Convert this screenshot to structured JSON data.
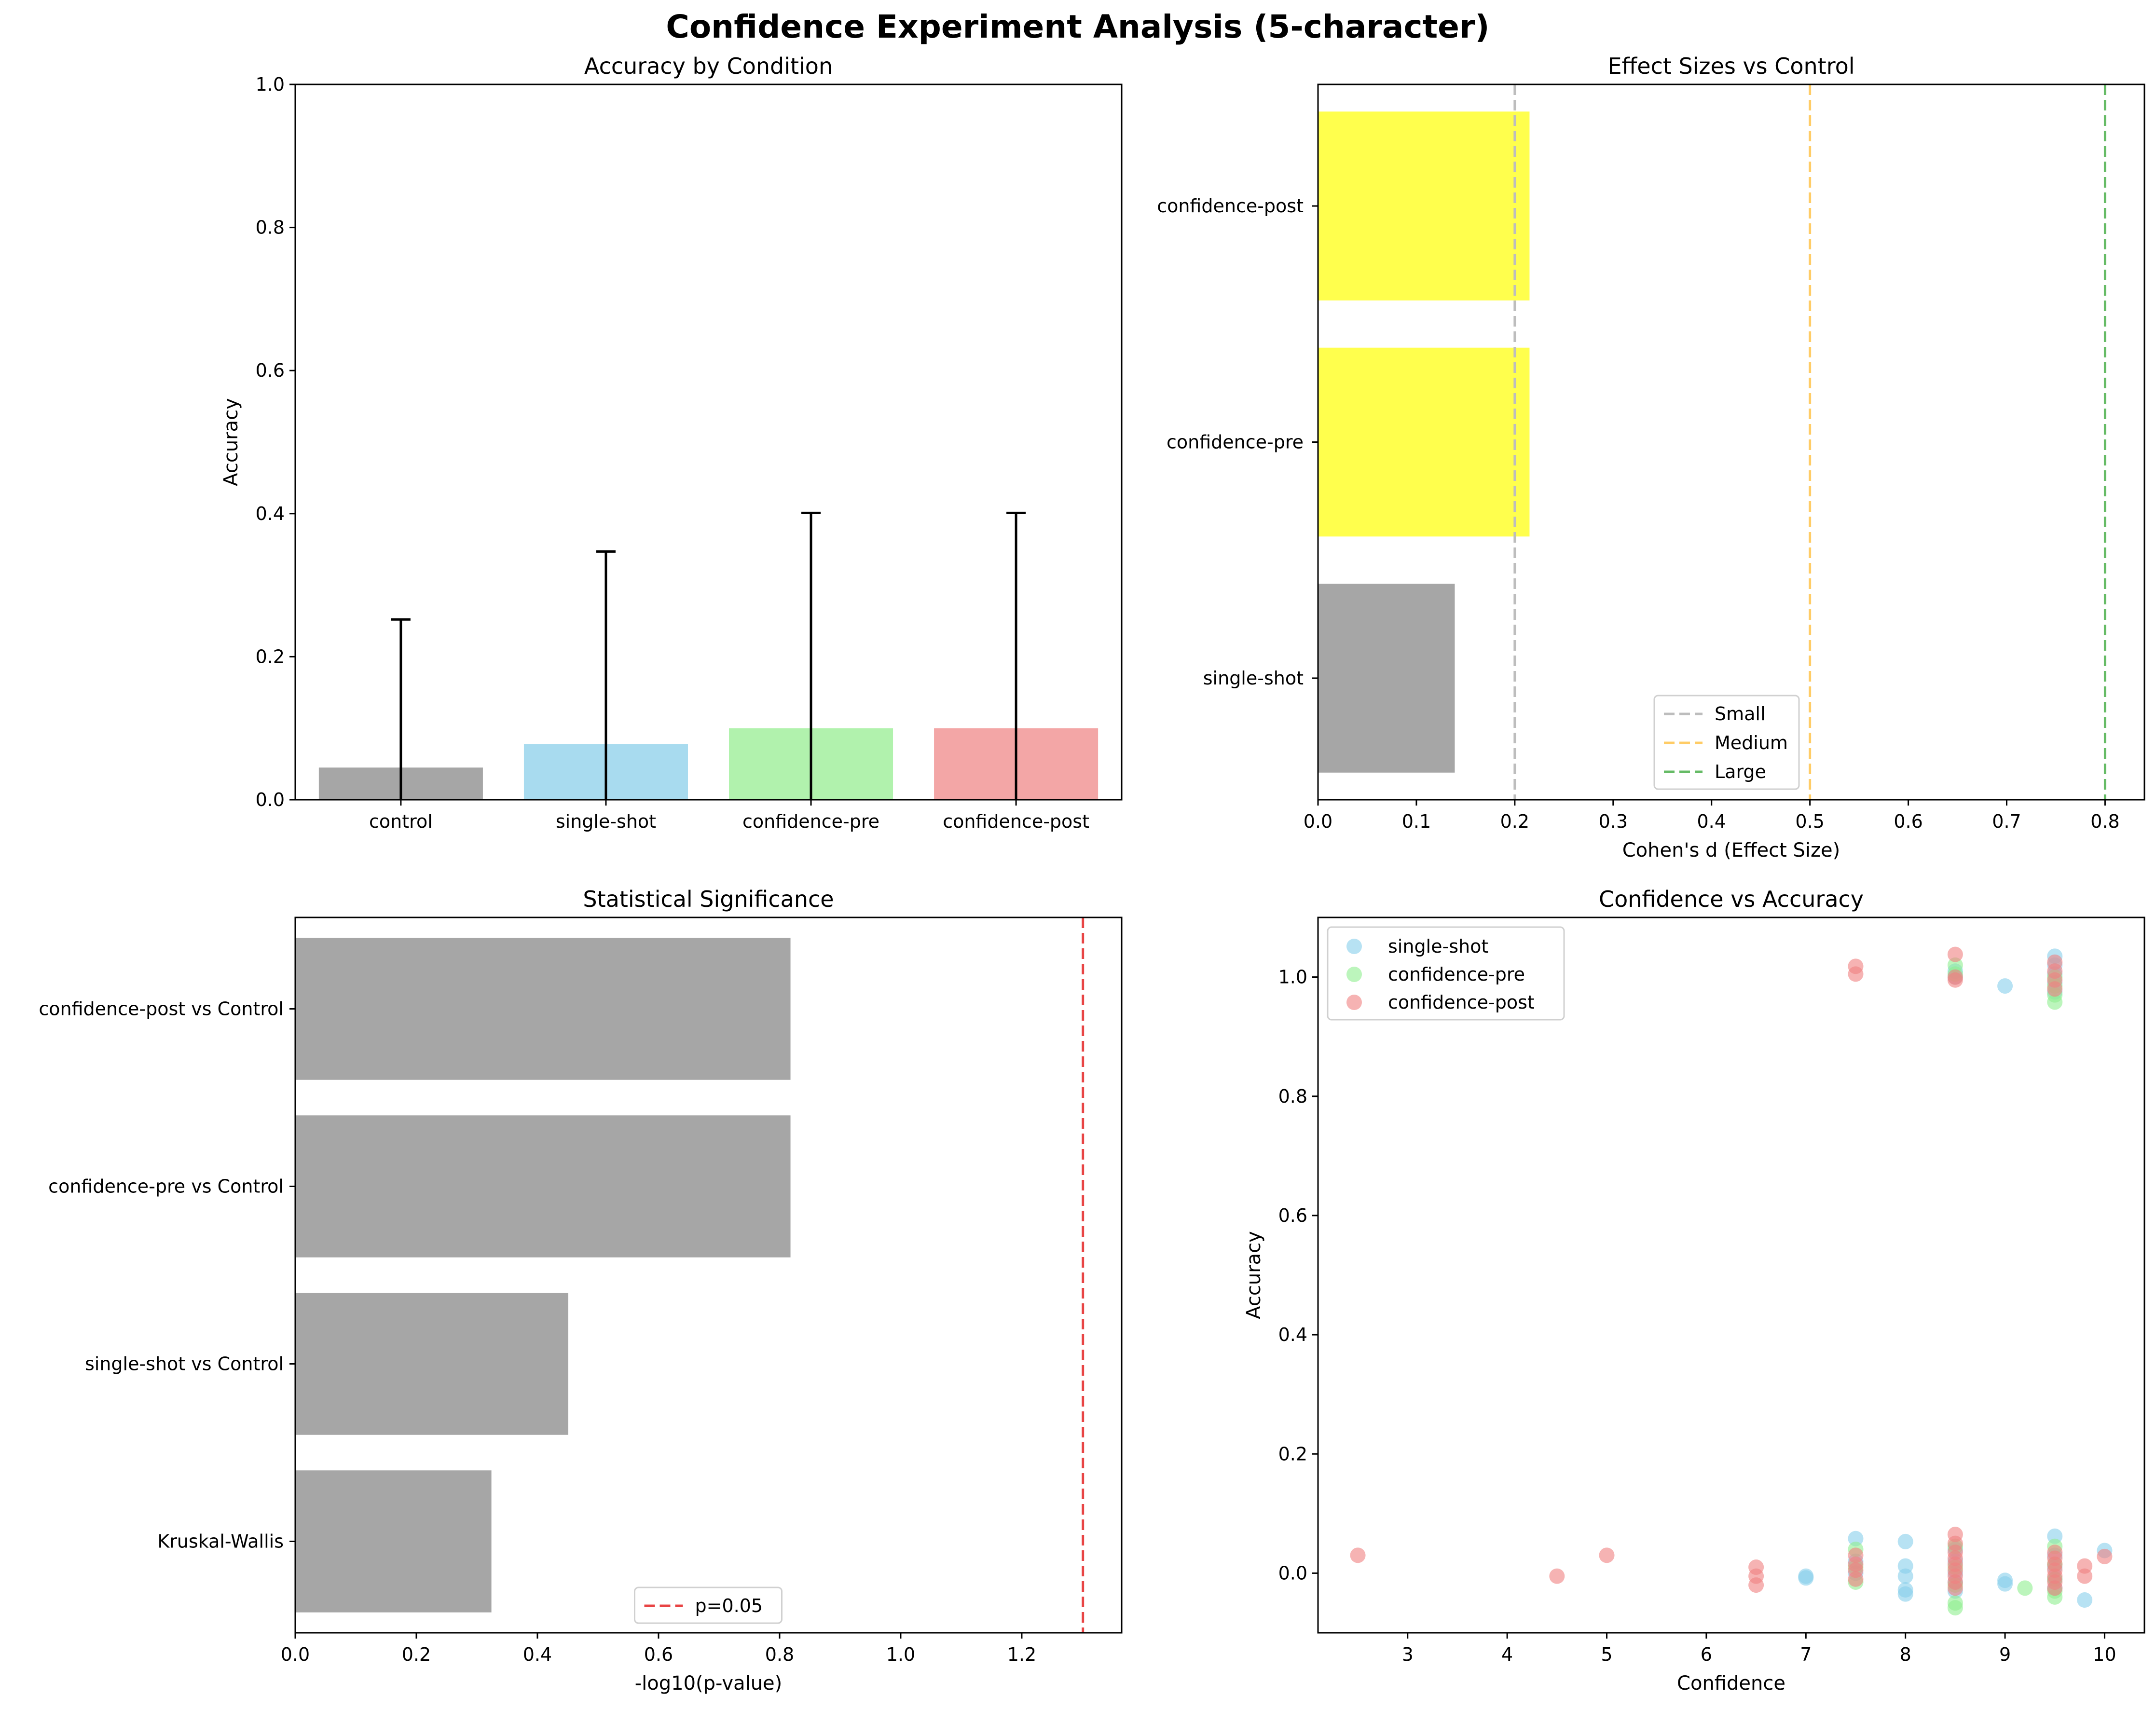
{
  "figure": {
    "title": "Confidence Experiment Analysis (5-character)"
  },
  "chart_data": [
    {
      "type": "bar",
      "title": "Accuracy by Condition",
      "xlabel": "",
      "ylabel": "Accuracy",
      "ylim": [
        0,
        1.0
      ],
      "yticks": [
        0.0,
        0.2,
        0.4,
        0.6,
        0.8,
        1.0
      ],
      "categories": [
        "control",
        "single-shot",
        "confidence-pre",
        "confidence-post"
      ],
      "values": [
        0.045,
        0.078,
        0.1,
        0.1
      ],
      "error_upper": [
        0.252,
        0.347,
        0.401,
        0.401
      ],
      "colors": [
        "#a6a6a6",
        "#a8dbef",
        "#b1f2ad",
        "#f3a6a6"
      ]
    },
    {
      "type": "bar",
      "orientation": "horizontal",
      "title": "Effect Sizes vs Control",
      "xlabel": "Cohen's d (Effect Size)",
      "xlim": [
        0,
        0.84
      ],
      "xticks": [
        0.0,
        0.1,
        0.2,
        0.3,
        0.4,
        0.5,
        0.6,
        0.7,
        0.8
      ],
      "categories": [
        "single-shot",
        "confidence-pre",
        "confidence-post"
      ],
      "values": [
        0.139,
        0.215,
        0.215
      ],
      "colors": [
        "#a6a6a6",
        "#ffff4d",
        "#ffff4d"
      ],
      "reference_lines": [
        {
          "name": "Small",
          "x": 0.2,
          "color": "#bdbdbd"
        },
        {
          "name": "Medium",
          "x": 0.5,
          "color": "#ffcc66"
        },
        {
          "name": "Large",
          "x": 0.8,
          "color": "#66bb66"
        }
      ],
      "legend": "lower-center"
    },
    {
      "type": "bar",
      "orientation": "horizontal",
      "title": "Statistical Significance",
      "xlabel": "-log10(p-value)",
      "xlim": [
        0,
        1.365
      ],
      "xticks": [
        0.0,
        0.2,
        0.4,
        0.6,
        0.8,
        1.0,
        1.2
      ],
      "categories": [
        "Kruskal-Wallis",
        "single-shot vs Control",
        "confidence-pre vs Control",
        "confidence-post vs Control"
      ],
      "values": [
        0.324,
        0.451,
        0.818,
        0.818
      ],
      "color": "#a6a6a6",
      "reference_lines": [
        {
          "name": "p=0.05",
          "x": 1.301,
          "color": "#e84444"
        }
      ],
      "legend": "lower-center"
    },
    {
      "type": "scatter",
      "title": "Confidence vs Accuracy",
      "xlabel": "Confidence",
      "ylabel": "Accuracy",
      "xlim": [
        2.1,
        10.4
      ],
      "ylim": [
        -0.1,
        1.1
      ],
      "xticks": [
        3,
        4,
        5,
        6,
        7,
        8,
        9,
        10
      ],
      "yticks": [
        0.0,
        0.2,
        0.4,
        0.6,
        0.8,
        1.0
      ],
      "legend": "upper-left",
      "series": [
        {
          "name": "single-shot",
          "color": "#87ceeb",
          "points": [
            [
              9.5,
              1.035
            ],
            [
              9.5,
              1.02
            ],
            [
              9.5,
              1.005
            ],
            [
              9.5,
              0.99
            ],
            [
              9.5,
              0.975
            ],
            [
              9.0,
              0.985
            ],
            [
              8.5,
              1.0
            ],
            [
              8.5,
              1.01
            ],
            [
              7.0,
              -0.005
            ],
            [
              7.0,
              -0.008
            ],
            [
              7.5,
              0.058
            ],
            [
              7.5,
              0.02
            ],
            [
              7.5,
              0.0
            ],
            [
              8.0,
              0.053
            ],
            [
              8.0,
              0.012
            ],
            [
              8.0,
              -0.005
            ],
            [
              8.0,
              -0.028
            ],
            [
              8.0,
              -0.035
            ],
            [
              8.5,
              0.04
            ],
            [
              8.5,
              0.02
            ],
            [
              8.5,
              0.0
            ],
            [
              8.5,
              -0.015
            ],
            [
              8.5,
              -0.03
            ],
            [
              9.0,
              -0.012
            ],
            [
              9.0,
              -0.018
            ],
            [
              9.5,
              0.062
            ],
            [
              9.5,
              0.03
            ],
            [
              9.5,
              0.01
            ],
            [
              9.5,
              -0.01
            ],
            [
              9.5,
              -0.025
            ],
            [
              9.8,
              -0.045
            ],
            [
              10.0,
              0.038
            ]
          ]
        },
        {
          "name": "confidence-pre",
          "color": "#90ee90",
          "points": [
            [
              8.5,
              1.02
            ],
            [
              8.5,
              1.005
            ],
            [
              9.5,
              1.0
            ],
            [
              9.5,
              0.985
            ],
            [
              9.5,
              0.97
            ],
            [
              9.5,
              0.958
            ],
            [
              7.5,
              0.04
            ],
            [
              7.5,
              0.01
            ],
            [
              7.5,
              -0.015
            ],
            [
              8.5,
              0.045
            ],
            [
              8.5,
              0.01
            ],
            [
              8.5,
              -0.02
            ],
            [
              8.5,
              -0.05
            ],
            [
              8.5,
              -0.058
            ],
            [
              9.2,
              -0.025
            ],
            [
              9.5,
              0.045
            ],
            [
              9.5,
              0.015
            ],
            [
              9.5,
              -0.01
            ],
            [
              9.5,
              -0.03
            ],
            [
              9.5,
              -0.04
            ]
          ]
        },
        {
          "name": "confidence-post",
          "color": "#f08080",
          "points": [
            [
              7.5,
              1.018
            ],
            [
              7.5,
              1.005
            ],
            [
              8.5,
              1.038
            ],
            [
              8.5,
              1.0
            ],
            [
              8.5,
              0.995
            ],
            [
              9.5,
              1.025
            ],
            [
              9.5,
              1.01
            ],
            [
              9.5,
              0.995
            ],
            [
              9.5,
              0.98
            ],
            [
              2.5,
              0.03
            ],
            [
              4.5,
              -0.005
            ],
            [
              5.0,
              0.03
            ],
            [
              6.5,
              0.01
            ],
            [
              6.5,
              -0.005
            ],
            [
              6.5,
              -0.02
            ],
            [
              7.5,
              0.03
            ],
            [
              7.5,
              0.015
            ],
            [
              7.5,
              0.005
            ],
            [
              7.5,
              -0.01
            ],
            [
              8.5,
              0.065
            ],
            [
              8.5,
              0.05
            ],
            [
              8.5,
              0.035
            ],
            [
              8.5,
              0.025
            ],
            [
              8.5,
              0.015
            ],
            [
              8.5,
              0.005
            ],
            [
              8.5,
              -0.005
            ],
            [
              8.5,
              -0.015
            ],
            [
              8.5,
              -0.025
            ],
            [
              9.5,
              0.035
            ],
            [
              9.5,
              0.025
            ],
            [
              9.5,
              0.015
            ],
            [
              9.5,
              0.005
            ],
            [
              9.5,
              -0.005
            ],
            [
              9.5,
              -0.015
            ],
            [
              9.5,
              -0.025
            ],
            [
              9.8,
              0.012
            ],
            [
              9.8,
              -0.005
            ],
            [
              10.0,
              0.028
            ]
          ]
        }
      ]
    }
  ]
}
